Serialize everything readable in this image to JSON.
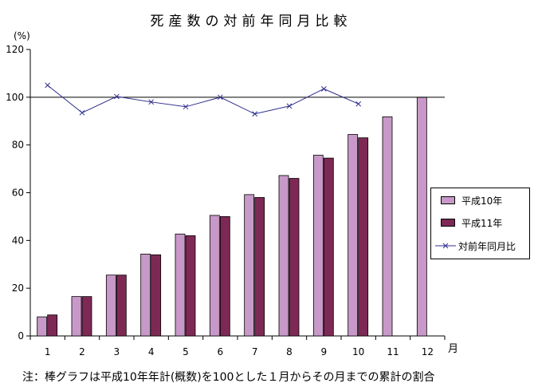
{
  "chart_data": {
    "type": "bar",
    "title": "死産数の対前年同月比較",
    "ylabel": "(%)",
    "xlabel": "月",
    "ylim": [
      0,
      120
    ],
    "yticks": [
      0,
      20,
      40,
      60,
      80,
      100,
      120
    ],
    "categories": [
      "1",
      "2",
      "3",
      "4",
      "5",
      "6",
      "7",
      "8",
      "9",
      "10",
      "11",
      "12"
    ],
    "series": [
      {
        "name": "平成10年",
        "color": "#c899c8",
        "values": [
          8,
          16.5,
          25.5,
          34.3,
          42.7,
          50.5,
          59.2,
          67.2,
          75.7,
          84.4,
          91.8,
          100
        ]
      },
      {
        "name": "平成11年",
        "color": "#7e2955",
        "values": [
          8.8,
          16.5,
          25.5,
          34,
          42,
          50,
          58,
          66,
          74.5,
          83,
          null,
          null
        ]
      }
    ],
    "line_series": {
      "name": "対前年同月比",
      "color": "#2f2f8f",
      "values": [
        105,
        93.5,
        100.3,
        98,
        96,
        100,
        93,
        96.3,
        103.5,
        97.2,
        null,
        null
      ]
    },
    "reference_line": 100,
    "legend_position": "right",
    "note": "注：棒グラフは平成10年年計(概数)を100とした１月からその月までの累計の割合"
  }
}
